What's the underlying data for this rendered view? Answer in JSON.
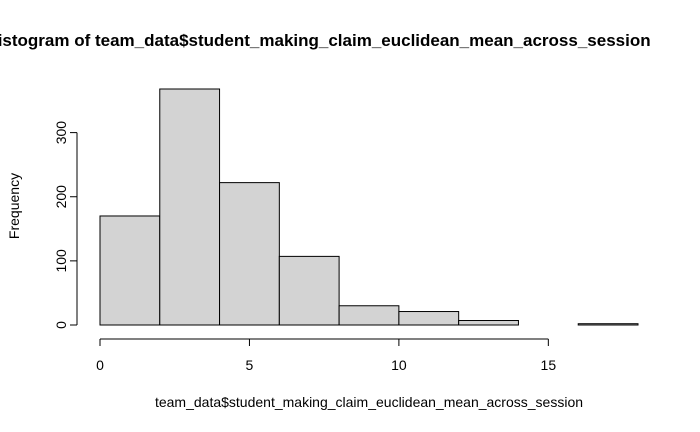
{
  "chart_data": {
    "type": "bar",
    "title": "Histogram of team_data$student_making_claim_euclidean_mean_across_session",
    "xlabel": "team_data$student_making_claim_euclidean_mean_across_session",
    "ylabel": "Frequency",
    "bin_edges": [
      0,
      2,
      4,
      6,
      8,
      10,
      12,
      14,
      16,
      18
    ],
    "values": [
      170,
      368,
      222,
      107,
      30,
      21,
      7,
      0,
      2
    ],
    "xlim": [
      0,
      18
    ],
    "ylim": [
      0,
      368
    ],
    "xticks": [
      0,
      5,
      10,
      15
    ],
    "yticks": [
      0,
      100,
      200,
      300
    ],
    "grid": false,
    "legend": "none"
  }
}
